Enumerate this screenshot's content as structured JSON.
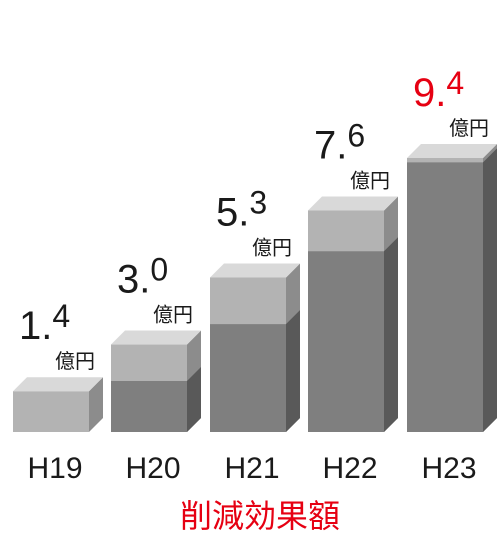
{
  "chart_data": {
    "type": "bar",
    "categories": [
      "H19",
      "H20",
      "H21",
      "H22",
      "H23"
    ],
    "values": [
      1.4,
      3.0,
      5.3,
      7.6,
      9.4
    ],
    "value_labels": [
      {
        "int": "1",
        "dec": "4",
        "unit": "億円"
      },
      {
        "int": "3",
        "dec": "0",
        "unit": "億円"
      },
      {
        "int": "5",
        "dec": "3",
        "unit": "億円"
      },
      {
        "int": "7",
        "dec": "6",
        "unit": "億円"
      },
      {
        "int": "9",
        "dec": "4",
        "unit": "億円"
      }
    ],
    "xlabel": "削減効果額",
    "ylabel": "",
    "title": "",
    "ylim": [
      0,
      10
    ],
    "grid": false,
    "colors": {
      "bar_top_face": "#d9d9d9",
      "bar_upper_front": "#b3b3b3",
      "bar_lower_front": "#7f7f7f",
      "bar_side_upper": "#8c8c8c",
      "bar_side_lower": "#595959",
      "label_text": "#1a1a1a",
      "highlight_text": "#e60012",
      "xlabel_text": "#e60012"
    },
    "highlight_index": 4
  }
}
